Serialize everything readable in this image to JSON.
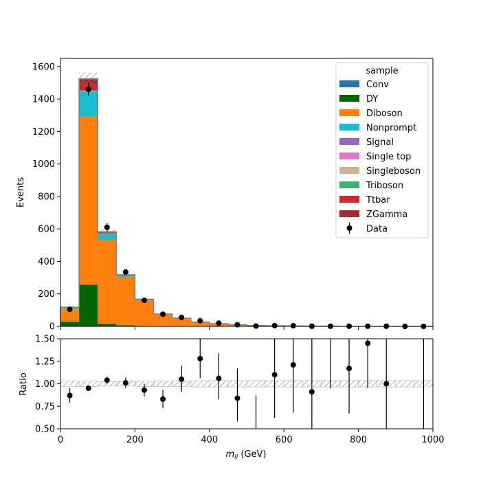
{
  "chart_data": [
    {
      "type": "bar",
      "stacked": true,
      "xlabel": "",
      "ylabel": "Events",
      "xlim": [
        0,
        1000
      ],
      "ylim": [
        0,
        1650
      ],
      "yticks": [
        0,
        200,
        400,
        600,
        800,
        1000,
        1200,
        1400,
        1600
      ],
      "bin_edges": [
        0,
        50,
        100,
        150,
        200,
        250,
        300,
        350,
        400,
        450,
        500,
        550,
        600,
        650,
        700,
        750,
        800,
        850,
        900,
        950,
        1000
      ],
      "legend": {
        "title": "sample",
        "placement": "top-right"
      },
      "series": [
        {
          "name": "Conv",
          "color": "#1f77b4",
          "values": [
            0,
            2,
            1,
            1,
            0,
            0,
            0,
            0,
            0,
            0,
            0,
            0,
            0,
            0,
            0,
            0,
            0,
            0,
            0,
            0
          ]
        },
        {
          "name": "DY",
          "color": "#006400",
          "values": [
            28,
            255,
            15,
            6,
            3,
            1,
            1,
            0,
            0,
            0,
            0,
            0,
            0,
            0,
            0,
            0,
            0,
            0,
            0,
            0
          ]
        },
        {
          "name": "Diboson",
          "color": "#ff7f0e",
          "values": [
            77,
            1035,
            515,
            295,
            156,
            72,
            48,
            26,
            17,
            10,
            6,
            4,
            3,
            2,
            2,
            1,
            1,
            1,
            0,
            0
          ]
        },
        {
          "name": "Nonprompt",
          "color": "#17becf",
          "values": [
            6,
            153,
            37,
            10,
            4,
            2,
            1,
            1,
            0,
            0,
            0,
            0,
            0,
            0,
            0,
            0,
            0,
            0,
            0,
            0
          ]
        },
        {
          "name": "Signal",
          "color": "#9467bd",
          "values": [
            0,
            2,
            1,
            0,
            0,
            0,
            0,
            0,
            0,
            0,
            0,
            0,
            0,
            0,
            0,
            0,
            0,
            0,
            0,
            0
          ]
        },
        {
          "name": "Single top",
          "color": "#e377c2",
          "values": [
            0,
            1,
            1,
            0,
            0,
            0,
            0,
            0,
            0,
            0,
            0,
            0,
            0,
            0,
            0,
            0,
            0,
            0,
            0,
            0
          ]
        },
        {
          "name": "Singleboson",
          "color": "#d2b48c",
          "values": [
            1,
            2,
            1,
            0,
            0,
            0,
            0,
            0,
            0,
            0,
            0,
            0,
            0,
            0,
            0,
            0,
            0,
            0,
            0,
            0
          ]
        },
        {
          "name": "Triboson",
          "color": "#3cb371",
          "values": [
            1,
            3,
            2,
            1,
            1,
            0,
            0,
            0,
            0,
            0,
            0,
            0,
            0,
            0,
            0,
            0,
            0,
            0,
            0,
            0
          ]
        },
        {
          "name": "Ttbar",
          "color": "#d62728",
          "values": [
            2,
            38,
            6,
            3,
            2,
            1,
            1,
            0,
            0,
            0,
            0,
            0,
            0,
            0,
            0,
            0,
            0,
            0,
            0,
            0
          ]
        },
        {
          "name": "ZGamma",
          "color": "#a52a2a",
          "values": [
            3,
            33,
            4,
            2,
            1,
            0,
            0,
            0,
            0,
            0,
            0,
            0,
            0,
            0,
            0,
            0,
            0,
            0,
            0,
            0
          ]
        }
      ],
      "mc_uncertainty": [
        10,
        40,
        15,
        8,
        5,
        4,
        3,
        2,
        1,
        1,
        1,
        1,
        1,
        0,
        0,
        0,
        0,
        0,
        0,
        0
      ],
      "data": {
        "name": "Data",
        "color": "#000000",
        "x": [
          25,
          75,
          125,
          175,
          225,
          275,
          325,
          375,
          425,
          475,
          525,
          575,
          625,
          675,
          725,
          775,
          825,
          875,
          925,
          975
        ],
        "y": [
          105,
          1460,
          610,
          335,
          160,
          75,
          55,
          35,
          20,
          10,
          2,
          5,
          4,
          1,
          1,
          1,
          1,
          1,
          0,
          0
        ],
        "yerr": [
          10,
          38,
          25,
          18,
          13,
          9,
          7,
          6,
          4,
          3,
          1,
          2,
          2,
          1,
          1,
          1,
          1,
          1,
          0,
          0
        ]
      }
    },
    {
      "type": "scatter",
      "xlabel": "m_ll (GeV)",
      "ylabel": "Ratio",
      "xlim": [
        0,
        1000
      ],
      "ylim": [
        0.5,
        1.5
      ],
      "xticks": [
        0,
        200,
        400,
        600,
        800,
        1000
      ],
      "yticks": [
        0.5,
        0.75,
        1.0,
        1.25,
        1.5
      ],
      "ytick_labels": [
        "0.50",
        "0.75",
        "1.00",
        "1.25",
        "1.50"
      ],
      "x": [
        25,
        75,
        125,
        175,
        225,
        275,
        325,
        375,
        425,
        475,
        575,
        625,
        675,
        775,
        825,
        875
      ],
      "y": [
        0.87,
        0.95,
        1.04,
        1.01,
        0.93,
        0.83,
        1.05,
        1.28,
        1.06,
        0.84,
        1.1,
        1.21,
        0.91,
        1.17,
        1.45,
        1.0
      ],
      "yerr_low": [
        0.08,
        0.03,
        0.04,
        0.06,
        0.07,
        0.1,
        0.14,
        0.22,
        0.23,
        0.26,
        0.48,
        0.53,
        0.5,
        0.5,
        0.5,
        0.5
      ],
      "yerr_high": [
        0.08,
        0.03,
        0.04,
        0.06,
        0.07,
        0.1,
        0.15,
        0.23,
        0.28,
        0.33,
        0.6,
        0.6,
        0.6,
        0.6,
        0.6,
        0.6
      ],
      "errbars_only": [
        {
          "x": 525,
          "low": 0.5,
          "high": 0.87
        },
        {
          "x": 725,
          "low": 0.95,
          "high": 1.5
        },
        {
          "x": 975,
          "low": 0.5,
          "high": 1.5
        }
      ],
      "band_halfwidth": [
        0.03,
        0.03,
        0.025,
        0.025,
        0.03,
        0.03,
        0.03,
        0.035,
        0.035,
        0.035,
        0.035,
        0.035,
        0.035,
        0.035,
        0.035,
        0.035,
        0.035,
        0.035,
        0.035,
        0.035
      ]
    }
  ]
}
